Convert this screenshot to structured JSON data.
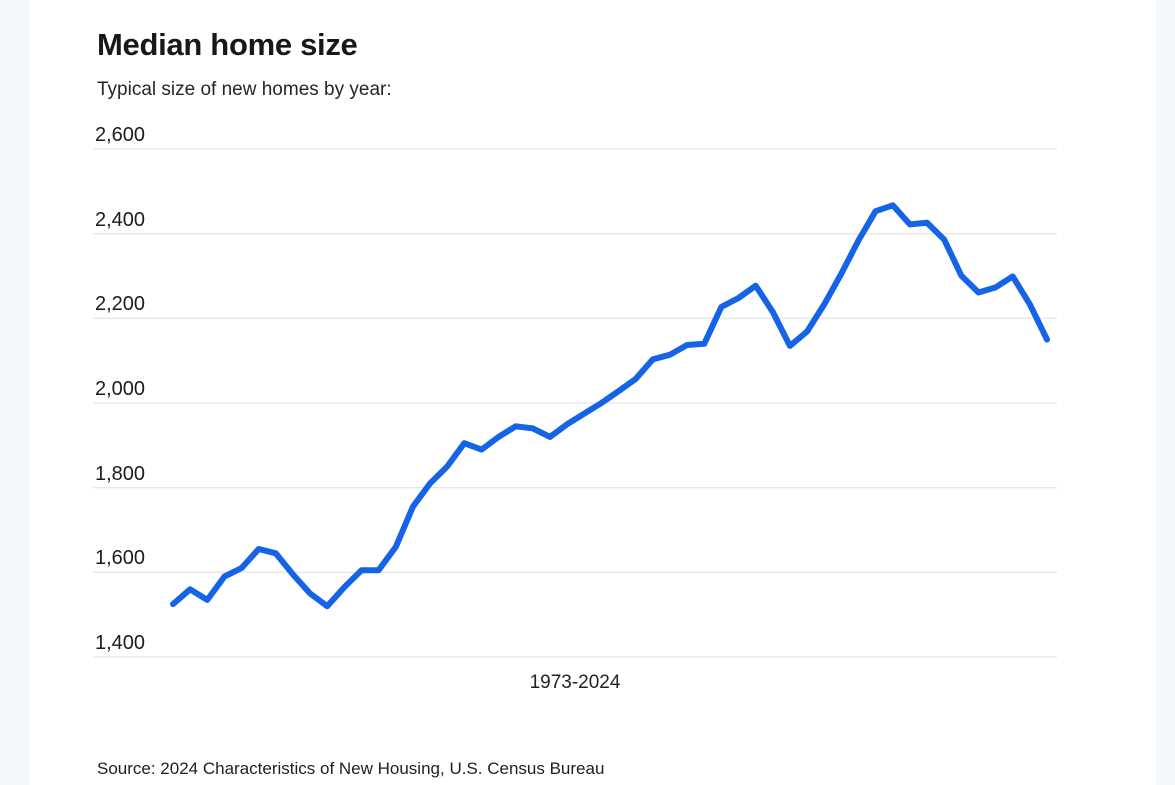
{
  "chart": {
    "title": "Median home size",
    "subtitle": "Typical size of new homes by year:",
    "source": "Source: 2024 Characteristics of New Housing, U.S. Census Bureau"
  },
  "colors": {
    "line": "#1563e6",
    "grid": "#dedede",
    "card_background": "#ffffff",
    "page_background": "#f5f8fc",
    "text": "#1c1c1e"
  },
  "chart_data": {
    "type": "line",
    "title": "Median home size",
    "subtitle": "Typical size of new homes by year:",
    "xlabel": "1973-2024",
    "ylabel": "",
    "legend": "none",
    "grid": "horizontal",
    "ylim": [
      1400,
      2600
    ],
    "ytick_labels": [
      "2,600",
      "2,400",
      "2,200",
      "2,000",
      "1,800",
      "1,600",
      "1,400"
    ],
    "ytick_values": [
      2600,
      2400,
      2200,
      2000,
      1800,
      1600,
      1400
    ],
    "x": [
      1973,
      1974,
      1975,
      1976,
      1977,
      1978,
      1979,
      1980,
      1981,
      1982,
      1983,
      1984,
      1985,
      1986,
      1987,
      1988,
      1989,
      1990,
      1991,
      1992,
      1993,
      1994,
      1995,
      1996,
      1997,
      1998,
      1999,
      2000,
      2001,
      2002,
      2003,
      2004,
      2005,
      2006,
      2007,
      2008,
      2009,
      2010,
      2011,
      2012,
      2013,
      2014,
      2015,
      2016,
      2017,
      2018,
      2019,
      2020,
      2021,
      2022,
      2023,
      2024
    ],
    "values": [
      1525,
      1560,
      1535,
      1590,
      1610,
      1655,
      1645,
      1595,
      1550,
      1520,
      1565,
      1605,
      1605,
      1660,
      1755,
      1810,
      1850,
      1905,
      1890,
      1920,
      1945,
      1940,
      1920,
      1950,
      1975,
      2000,
      2028,
      2057,
      2103,
      2114,
      2137,
      2140,
      2227,
      2248,
      2277,
      2215,
      2135,
      2169,
      2233,
      2306,
      2384,
      2453,
      2467,
      2422,
      2426,
      2386,
      2301,
      2261,
      2273,
      2299,
      2233,
      2150
    ]
  }
}
